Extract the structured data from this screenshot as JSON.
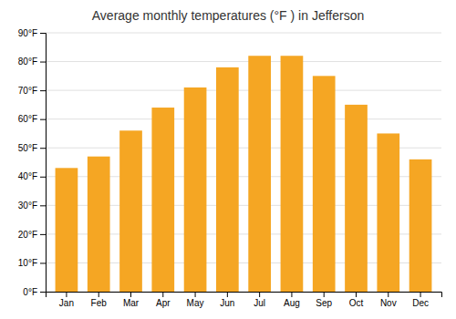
{
  "chart_data": {
    "type": "bar",
    "title": "Average monthly temperatures (°F ) in Jefferson",
    "categories": [
      "Jan",
      "Feb",
      "Mar",
      "Apr",
      "May",
      "Jun",
      "Jul",
      "Aug",
      "Sep",
      "Oct",
      "Nov",
      "Dec"
    ],
    "values": [
      43,
      47,
      56,
      64,
      71,
      78,
      82,
      82,
      75,
      65,
      55,
      46
    ],
    "color": "#F5A623",
    "ylim": [
      0,
      90
    ],
    "yticks": [
      {
        "value": 0,
        "label": "0°F"
      },
      {
        "value": 10,
        "label": "10°F"
      },
      {
        "value": 20,
        "label": "20°F"
      },
      {
        "value": 30,
        "label": "30°F"
      },
      {
        "value": 40,
        "label": "40°F"
      },
      {
        "value": 50,
        "label": "50°F"
      },
      {
        "value": 60,
        "label": "60°F"
      },
      {
        "value": 70,
        "label": "70°F"
      },
      {
        "value": 80,
        "label": "80°F"
      },
      {
        "value": 90,
        "label": "90°F"
      }
    ],
    "grid": true
  }
}
